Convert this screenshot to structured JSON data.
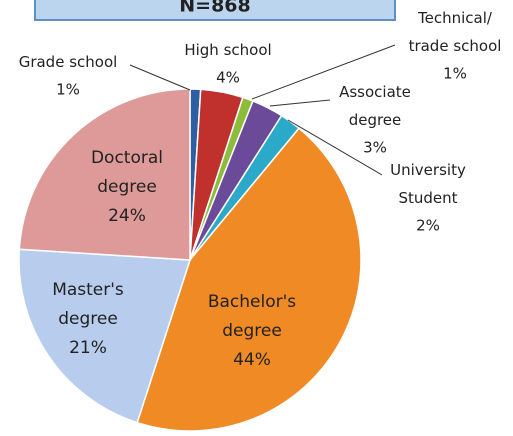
{
  "chart_data": {
    "type": "pie",
    "title": "N=868",
    "categories": [
      "Grade school",
      "High school",
      "Technical/\ntrade school",
      "Associate\ndegree",
      "University\nStudent",
      "Bachelor's\ndegree",
      "Master's\ndegree",
      "Doctoral\ndegree"
    ],
    "values": [
      1,
      4,
      1,
      3,
      2,
      44,
      21,
      24
    ],
    "value_labels": [
      "1%",
      "4%",
      "1%",
      "3%",
      "2%",
      "44%",
      "21%",
      "24%"
    ],
    "colors": [
      "#2e5fa3",
      "#c0302c",
      "#8dbb3b",
      "#6c4a9a",
      "#2aa9c9",
      "#f08a24",
      "#b8cdee",
      "#dd9a98"
    ]
  }
}
